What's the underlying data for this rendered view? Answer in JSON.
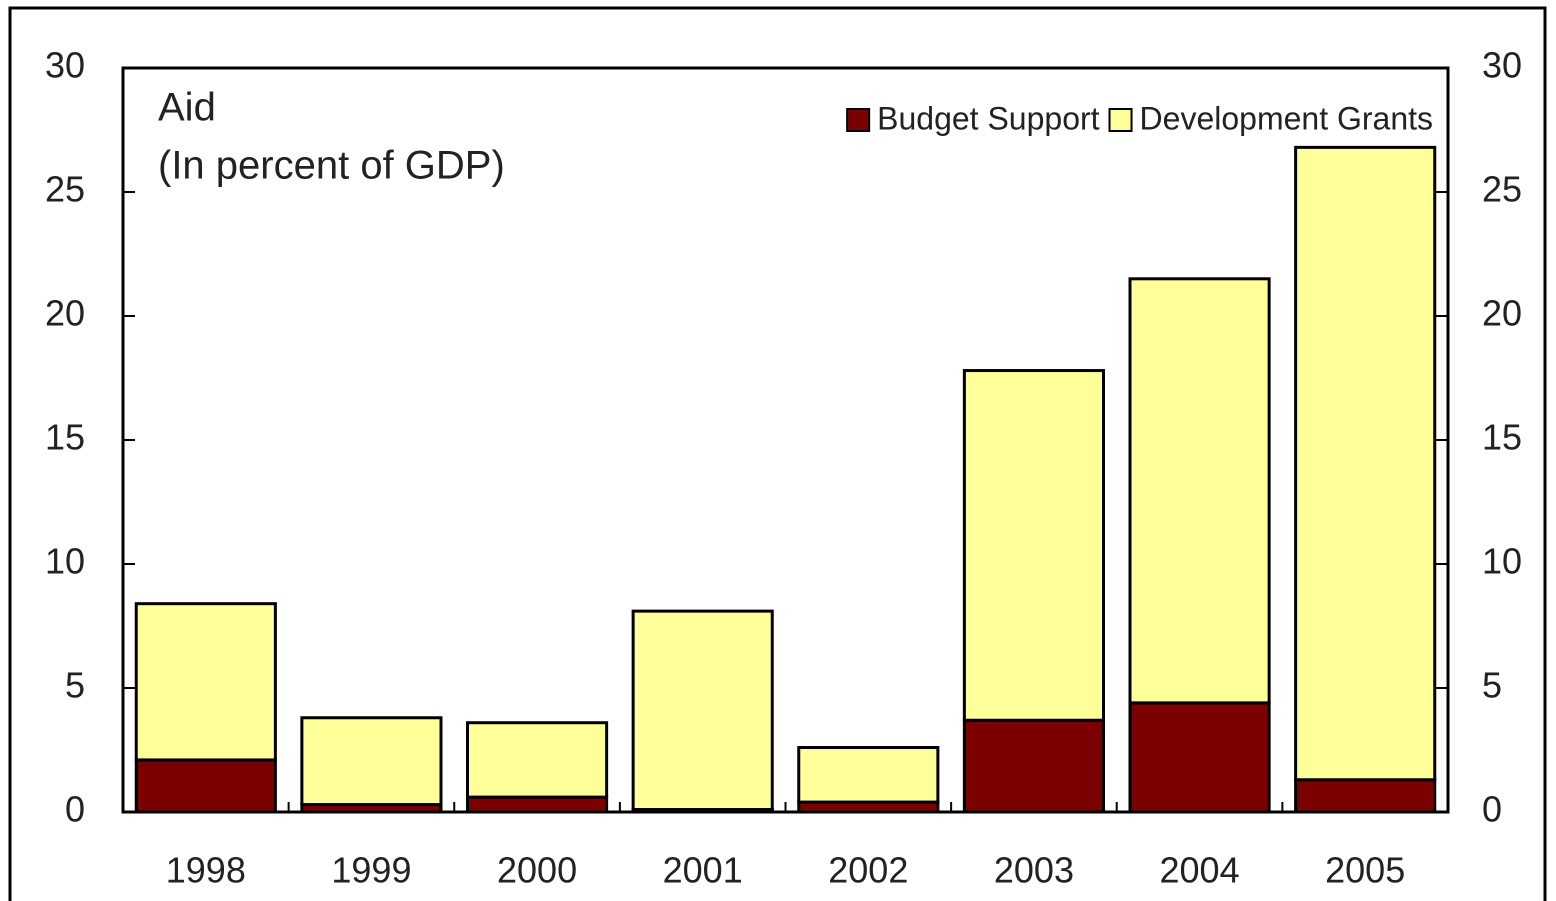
{
  "chart_data": {
    "type": "stacked_bar",
    "title": "Aid",
    "subtitle": "(In percent of GDP)",
    "categories": [
      "1998",
      "1999",
      "2000",
      "2001",
      "2002",
      "2003",
      "2004",
      "2005"
    ],
    "series": [
      {
        "name": "Budget Support",
        "color": "#7b0000",
        "values": [
          2.1,
          0.3,
          0.6,
          0.1,
          0.4,
          3.7,
          4.4,
          1.3
        ]
      },
      {
        "name": "Development Grants",
        "color": "#ffff99",
        "values": [
          6.3,
          3.5,
          3.0,
          8.0,
          2.2,
          14.1,
          17.1,
          25.5
        ]
      }
    ],
    "ylim": [
      0,
      30
    ],
    "yticks": [
      0,
      5,
      10,
      15,
      20,
      25,
      30
    ],
    "y2lim": [
      0,
      30
    ],
    "y2ticks": [
      0,
      5,
      10,
      15,
      20,
      25,
      30
    ],
    "legend": "top-right",
    "grid": false
  }
}
